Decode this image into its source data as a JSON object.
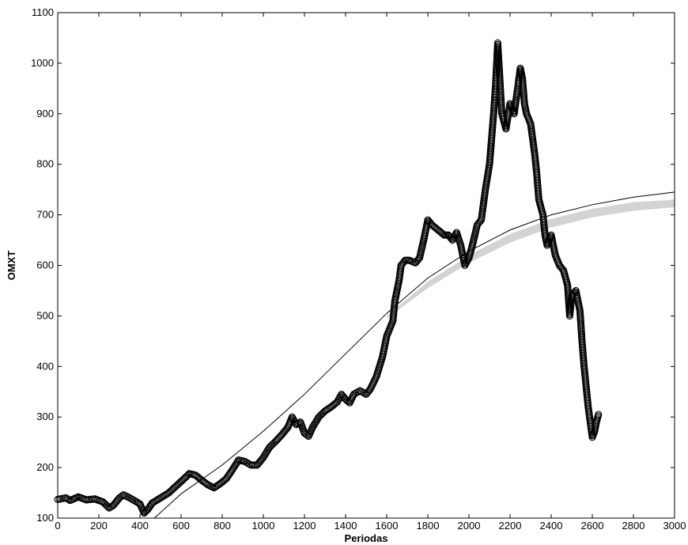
{
  "chart_data": {
    "type": "scatter",
    "title": "",
    "xlabel": "Periodas",
    "ylabel": "OMXT",
    "xlim": [
      0,
      3000
    ],
    "ylim": [
      100,
      1100
    ],
    "xticks": [
      0,
      200,
      400,
      600,
      800,
      1000,
      1200,
      1400,
      1600,
      1800,
      2000,
      2200,
      2400,
      2600,
      2800,
      3000
    ],
    "yticks": [
      100,
      200,
      300,
      400,
      500,
      600,
      700,
      800,
      900,
      1000,
      1100
    ],
    "grid": false,
    "legend": "none",
    "series": [
      {
        "kind": "scatter",
        "marker": "circle",
        "color": "#000000",
        "points": [
          [
            0,
            137
          ],
          [
            40,
            140
          ],
          [
            60,
            135
          ],
          [
            100,
            142
          ],
          [
            140,
            136
          ],
          [
            180,
            138
          ],
          [
            220,
            132
          ],
          [
            250,
            120
          ],
          [
            270,
            125
          ],
          [
            300,
            140
          ],
          [
            320,
            146
          ],
          [
            350,
            140
          ],
          [
            380,
            133
          ],
          [
            400,
            128
          ],
          [
            420,
            110
          ],
          [
            440,
            118
          ],
          [
            460,
            130
          ],
          [
            500,
            140
          ],
          [
            540,
            150
          ],
          [
            580,
            165
          ],
          [
            620,
            180
          ],
          [
            640,
            188
          ],
          [
            670,
            185
          ],
          [
            700,
            175
          ],
          [
            730,
            166
          ],
          [
            760,
            160
          ],
          [
            790,
            168
          ],
          [
            820,
            178
          ],
          [
            850,
            196
          ],
          [
            880,
            215
          ],
          [
            910,
            212
          ],
          [
            940,
            205
          ],
          [
            970,
            205
          ],
          [
            1000,
            220
          ],
          [
            1030,
            240
          ],
          [
            1060,
            252
          ],
          [
            1090,
            265
          ],
          [
            1120,
            280
          ],
          [
            1140,
            300
          ],
          [
            1160,
            285
          ],
          [
            1180,
            290
          ],
          [
            1200,
            268
          ],
          [
            1220,
            262
          ],
          [
            1240,
            280
          ],
          [
            1270,
            300
          ],
          [
            1300,
            312
          ],
          [
            1330,
            320
          ],
          [
            1360,
            330
          ],
          [
            1380,
            345
          ],
          [
            1400,
            335
          ],
          [
            1420,
            328
          ],
          [
            1440,
            345
          ],
          [
            1470,
            352
          ],
          [
            1500,
            345
          ],
          [
            1520,
            355
          ],
          [
            1550,
            380
          ],
          [
            1580,
            420
          ],
          [
            1600,
            460
          ],
          [
            1630,
            490
          ],
          [
            1640,
            530
          ],
          [
            1650,
            550
          ],
          [
            1660,
            570
          ],
          [
            1670,
            600
          ],
          [
            1690,
            610
          ],
          [
            1710,
            610
          ],
          [
            1740,
            605
          ],
          [
            1760,
            615
          ],
          [
            1780,
            650
          ],
          [
            1800,
            690
          ],
          [
            1820,
            680
          ],
          [
            1850,
            670
          ],
          [
            1880,
            660
          ],
          [
            1900,
            660
          ],
          [
            1920,
            650
          ],
          [
            1940,
            665
          ],
          [
            1960,
            640
          ],
          [
            1980,
            600
          ],
          [
            2000,
            615
          ],
          [
            2020,
            645
          ],
          [
            2040,
            680
          ],
          [
            2060,
            690
          ],
          [
            2080,
            750
          ],
          [
            2100,
            800
          ],
          [
            2110,
            850
          ],
          [
            2120,
            900
          ],
          [
            2130,
            960
          ],
          [
            2140,
            1040
          ],
          [
            2150,
            970
          ],
          [
            2160,
            900
          ],
          [
            2180,
            870
          ],
          [
            2200,
            920
          ],
          [
            2220,
            900
          ],
          [
            2240,
            960
          ],
          [
            2250,
            990
          ],
          [
            2260,
            970
          ],
          [
            2270,
            920
          ],
          [
            2280,
            900
          ],
          [
            2300,
            880
          ],
          [
            2320,
            820
          ],
          [
            2330,
            780
          ],
          [
            2340,
            730
          ],
          [
            2360,
            700
          ],
          [
            2370,
            660
          ],
          [
            2380,
            640
          ],
          [
            2400,
            660
          ],
          [
            2420,
            620
          ],
          [
            2440,
            600
          ],
          [
            2460,
            590
          ],
          [
            2480,
            560
          ],
          [
            2490,
            500
          ],
          [
            2500,
            540
          ],
          [
            2520,
            550
          ],
          [
            2540,
            510
          ],
          [
            2550,
            450
          ],
          [
            2560,
            400
          ],
          [
            2570,
            360
          ],
          [
            2580,
            320
          ],
          [
            2590,
            290
          ],
          [
            2600,
            260
          ],
          [
            2610,
            270
          ],
          [
            2620,
            290
          ],
          [
            2630,
            305
          ]
        ]
      },
      {
        "kind": "line",
        "name_hidden": true,
        "color": "#000000",
        "points": [
          [
            470,
            100
          ],
          [
            600,
            148
          ],
          [
            800,
            205
          ],
          [
            1000,
            272
          ],
          [
            1200,
            345
          ],
          [
            1400,
            425
          ],
          [
            1600,
            505
          ],
          [
            1800,
            575
          ],
          [
            2000,
            628
          ],
          [
            2200,
            670
          ],
          [
            2400,
            700
          ],
          [
            2600,
            720
          ],
          [
            2800,
            735
          ],
          [
            3000,
            745
          ]
        ]
      },
      {
        "kind": "band",
        "color": "#d3d3d3",
        "upper": [
          [
            1600,
            500
          ],
          [
            1800,
            568
          ],
          [
            2000,
            620
          ],
          [
            2200,
            662
          ],
          [
            2400,
            692
          ],
          [
            2600,
            712
          ],
          [
            2800,
            725
          ],
          [
            3000,
            730
          ]
        ],
        "lower": [
          [
            1600,
            495
          ],
          [
            1800,
            555
          ],
          [
            2000,
            605
          ],
          [
            2200,
            645
          ],
          [
            2400,
            675
          ],
          [
            2600,
            695
          ],
          [
            2800,
            708
          ],
          [
            3000,
            715
          ]
        ]
      }
    ]
  }
}
